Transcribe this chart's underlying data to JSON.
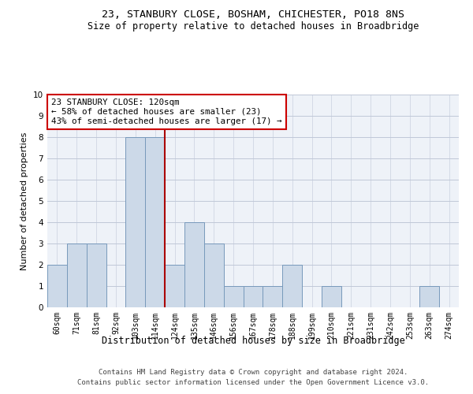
{
  "title": "23, STANBURY CLOSE, BOSHAM, CHICHESTER, PO18 8NS",
  "subtitle": "Size of property relative to detached houses in Broadbridge",
  "xlabel": "Distribution of detached houses by size in Broadbridge",
  "ylabel": "Number of detached properties",
  "bins": [
    "60sqm",
    "71sqm",
    "81sqm",
    "92sqm",
    "103sqm",
    "114sqm",
    "124sqm",
    "135sqm",
    "146sqm",
    "156sqm",
    "167sqm",
    "178sqm",
    "188sqm",
    "199sqm",
    "210sqm",
    "221sqm",
    "231sqm",
    "242sqm",
    "253sqm",
    "263sqm",
    "274sqm"
  ],
  "counts": [
    2,
    3,
    3,
    0,
    8,
    8,
    2,
    4,
    3,
    1,
    1,
    1,
    2,
    0,
    1,
    0,
    0,
    0,
    0,
    1,
    0
  ],
  "vline_index": 5.5,
  "bar_color": "#ccd9e8",
  "bar_edge_color": "#7799bb",
  "vline_color": "#aa0000",
  "annotation_box_color": "#cc0000",
  "annotation_text": "23 STANBURY CLOSE: 120sqm\n← 58% of detached houses are smaller (23)\n43% of semi-detached houses are larger (17) →",
  "footer_text": "Contains HM Land Registry data © Crown copyright and database right 2024.\nContains public sector information licensed under the Open Government Licence v3.0.",
  "ylim": [
    0,
    10
  ],
  "background_color": "#eef2f8",
  "title_fontsize": 9.5,
  "subtitle_fontsize": 8.5
}
